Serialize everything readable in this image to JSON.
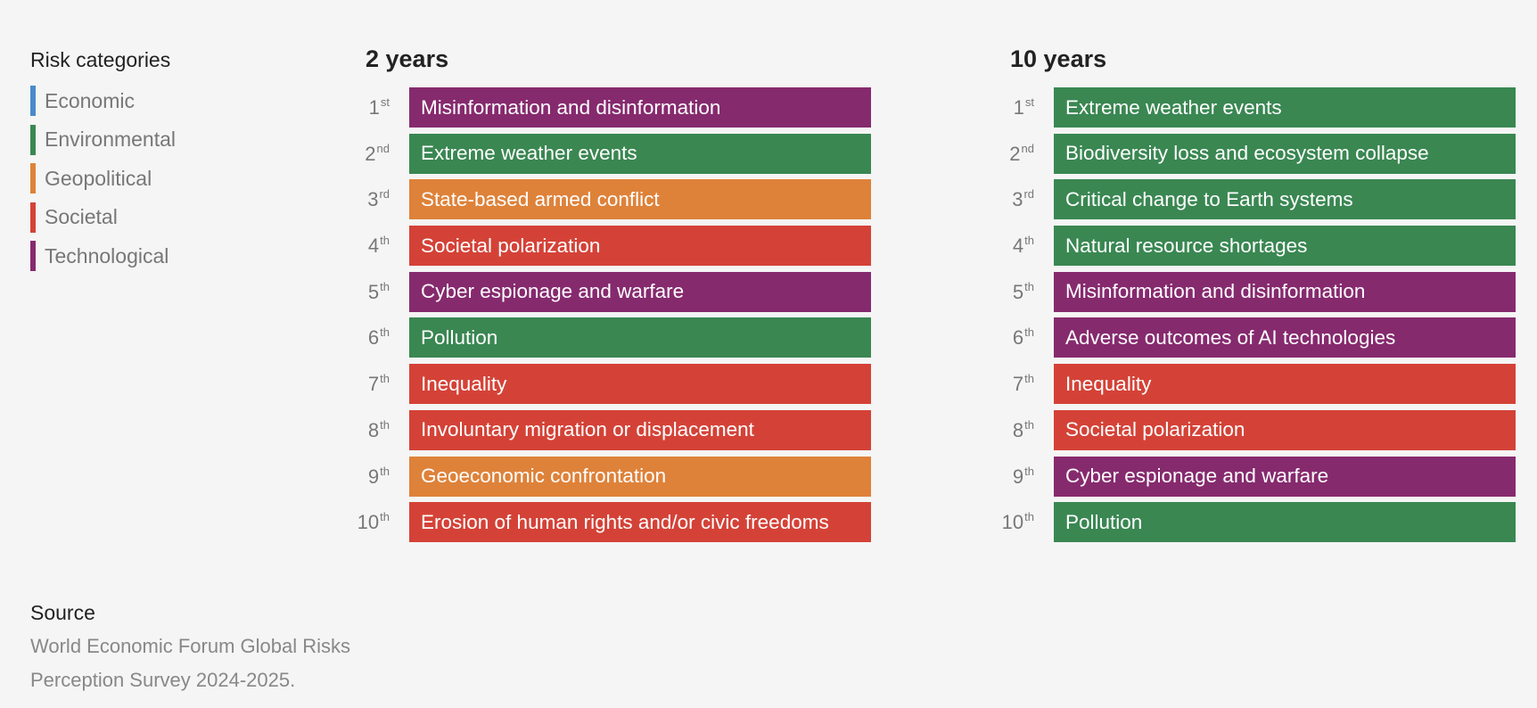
{
  "legend": {
    "title": "Risk categories",
    "items": [
      {
        "label": "Economic",
        "color": "#4a8ac9"
      },
      {
        "label": "Environmental",
        "color": "#3a8752"
      },
      {
        "label": "Geopolitical",
        "color": "#de823a"
      },
      {
        "label": "Societal",
        "color": "#d44237"
      },
      {
        "label": "Technological",
        "color": "#862a6e"
      }
    ]
  },
  "chart_data": {
    "type": "table",
    "colors": {
      "Economic": "#4a8ac9",
      "Environmental": "#3a8752",
      "Geopolitical": "#de823a",
      "Societal": "#d44237",
      "Technological": "#862a6e"
    },
    "columns": [
      {
        "title": "2 years",
        "rows": [
          {
            "rank": "1",
            "suffix": "st",
            "label": "Misinformation and disinformation",
            "category": "Technological"
          },
          {
            "rank": "2",
            "suffix": "nd",
            "label": "Extreme weather events",
            "category": "Environmental"
          },
          {
            "rank": "3",
            "suffix": "rd",
            "label": "State-based armed conflict",
            "category": "Geopolitical"
          },
          {
            "rank": "4",
            "suffix": "th",
            "label": "Societal polarization",
            "category": "Societal"
          },
          {
            "rank": "5",
            "suffix": "th",
            "label": "Cyber espionage and warfare",
            "category": "Technological"
          },
          {
            "rank": "6",
            "suffix": "th",
            "label": "Pollution",
            "category": "Environmental"
          },
          {
            "rank": "7",
            "suffix": "th",
            "label": "Inequality",
            "category": "Societal"
          },
          {
            "rank": "8",
            "suffix": "th",
            "label": "Involuntary migration or displacement",
            "category": "Societal"
          },
          {
            "rank": "9",
            "suffix": "th",
            "label": "Geoeconomic confrontation",
            "category": "Geopolitical"
          },
          {
            "rank": "10",
            "suffix": "th",
            "label": "Erosion of human rights and/or civic freedoms",
            "category": "Societal"
          }
        ]
      },
      {
        "title": "10 years",
        "rows": [
          {
            "rank": "1",
            "suffix": "st",
            "label": "Extreme weather events",
            "category": "Environmental"
          },
          {
            "rank": "2",
            "suffix": "nd",
            "label": "Biodiversity loss and ecosystem collapse",
            "category": "Environmental"
          },
          {
            "rank": "3",
            "suffix": "rd",
            "label": "Critical change to Earth systems",
            "category": "Environmental"
          },
          {
            "rank": "4",
            "suffix": "th",
            "label": "Natural resource shortages",
            "category": "Environmental"
          },
          {
            "rank": "5",
            "suffix": "th",
            "label": "Misinformation and disinformation",
            "category": "Technological"
          },
          {
            "rank": "6",
            "suffix": "th",
            "label": "Adverse outcomes of AI technologies",
            "category": "Technological"
          },
          {
            "rank": "7",
            "suffix": "th",
            "label": "Inequality",
            "category": "Societal"
          },
          {
            "rank": "8",
            "suffix": "th",
            "label": "Societal polarization",
            "category": "Societal"
          },
          {
            "rank": "9",
            "suffix": "th",
            "label": "Cyber espionage and warfare",
            "category": "Technological"
          },
          {
            "rank": "10",
            "suffix": "th",
            "label": "Pollution",
            "category": "Environmental"
          }
        ]
      }
    ]
  },
  "source": {
    "title": "Source",
    "text": "World Economic Forum Global Risks Perception Survey 2024-2025."
  }
}
